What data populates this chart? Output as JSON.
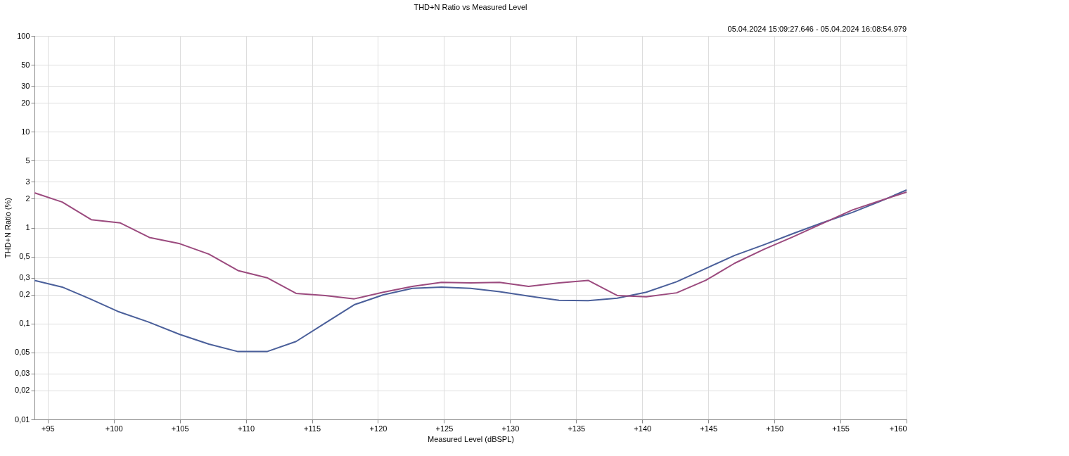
{
  "chart_data": {
    "type": "line",
    "title": "THD+N Ratio vs Measured Level",
    "xlabel": "Measured Level (dBSPL)",
    "ylabel": "THD+N Ratio (%)",
    "annotations": [
      "05.04.2024 15:09:27.646 - 05.04.2024 16:08:54.979"
    ],
    "log": "y",
    "grid": true,
    "line_style": "solid",
    "marker": "none",
    "xlim": [
      94,
      160
    ],
    "ylim": [
      0.01,
      100
    ],
    "xticks": [
      {
        "value": 95,
        "label": "+95"
      },
      {
        "value": 100,
        "label": "+100"
      },
      {
        "value": 105,
        "label": "+105"
      },
      {
        "value": 110,
        "label": "+110"
      },
      {
        "value": 115,
        "label": "+115"
      },
      {
        "value": 120,
        "label": "+120"
      },
      {
        "value": 125,
        "label": "+125"
      },
      {
        "value": 130,
        "label": "+130"
      },
      {
        "value": 135,
        "label": "+135"
      },
      {
        "value": 140,
        "label": "+140"
      },
      {
        "value": 145,
        "label": "+145"
      },
      {
        "value": 150,
        "label": "+150"
      },
      {
        "value": 155,
        "label": "+155"
      },
      {
        "value": 160,
        "label": "+160"
      }
    ],
    "yticks": [
      {
        "value": 0.01,
        "label": "0,01"
      },
      {
        "value": 0.02,
        "label": "0,02"
      },
      {
        "value": 0.03,
        "label": "0,03"
      },
      {
        "value": 0.05,
        "label": "0,05"
      },
      {
        "value": 0.1,
        "label": "0,1"
      },
      {
        "value": 0.2,
        "label": "0,2"
      },
      {
        "value": 0.3,
        "label": "0,3"
      },
      {
        "value": 0.5,
        "label": "0,5"
      },
      1,
      2,
      3,
      5,
      10,
      20,
      30,
      50,
      100
    ],
    "series": [
      {
        "color": "#4a5f9a",
        "x": [
          94.0,
          96.1,
          98.2,
          100.3,
          102.6,
          105.0,
          107.2,
          109.4,
          111.6,
          113.8,
          116.0,
          118.2,
          120.4,
          122.6,
          124.8,
          127.0,
          129.2,
          131.4,
          133.7,
          135.9,
          138.1,
          140.3,
          142.6,
          144.8,
          147.0,
          149.2,
          151.4,
          153.6,
          155.9,
          158.0,
          160.0
        ],
        "values": [
          0.282,
          0.24,
          0.181,
          0.134,
          0.104,
          0.077,
          0.061,
          0.051,
          0.051,
          0.065,
          0.101,
          0.157,
          0.199,
          0.233,
          0.24,
          0.233,
          0.215,
          0.193,
          0.175,
          0.173,
          0.184,
          0.212,
          0.273,
          0.375,
          0.514,
          0.662,
          0.867,
          1.12,
          1.44,
          1.88,
          2.47
        ]
      },
      {
        "color": "#9b4a7e",
        "x": [
          94.0,
          96.1,
          98.3,
          100.5,
          102.7,
          105.0,
          107.2,
          109.4,
          111.6,
          113.8,
          116.0,
          118.2,
          120.4,
          122.6,
          124.8,
          127.0,
          129.2,
          131.4,
          133.7,
          135.9,
          138.1,
          140.3,
          142.6,
          144.8,
          147.0,
          149.2,
          151.4,
          153.6,
          155.9,
          158.0,
          160.0
        ],
        "values": [
          2.31,
          1.85,
          1.21,
          1.12,
          0.79,
          0.68,
          0.53,
          0.357,
          0.3,
          0.206,
          0.196,
          0.181,
          0.212,
          0.244,
          0.269,
          0.265,
          0.269,
          0.244,
          0.265,
          0.282,
          0.196,
          0.19,
          0.209,
          0.282,
          0.426,
          0.593,
          0.8,
          1.1,
          1.53,
          1.91,
          2.35
        ]
      }
    ]
  }
}
